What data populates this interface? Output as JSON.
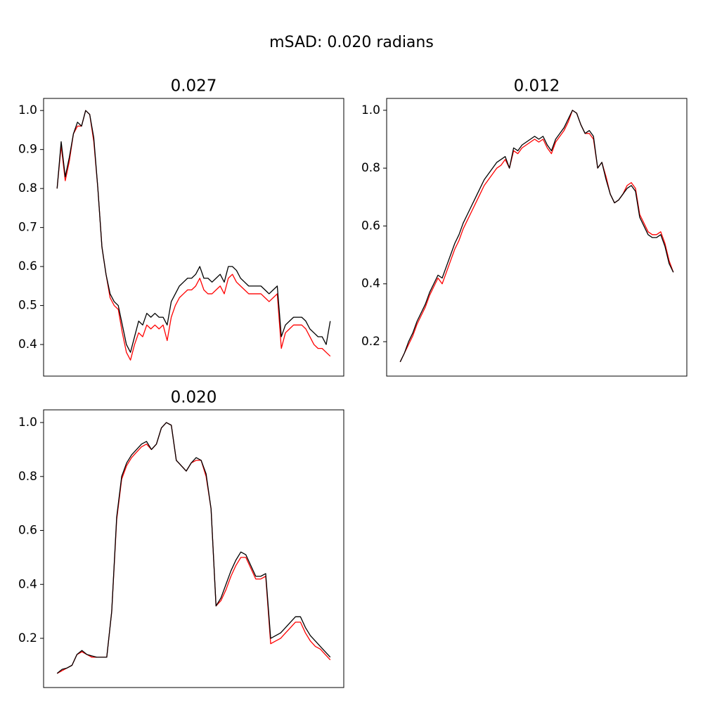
{
  "title": "mSAD: 0.020 radians",
  "chart_data": [
    {
      "type": "line",
      "title": "0.027",
      "ylim": [
        0.319,
        1.031
      ],
      "yticks": [
        {
          "value": 0.4,
          "label": "0.4"
        },
        {
          "value": 0.5,
          "label": "0.5"
        },
        {
          "value": 0.6,
          "label": "0.6"
        },
        {
          "value": 0.7,
          "label": "0.7"
        },
        {
          "value": 0.8,
          "label": "0.8"
        },
        {
          "value": 0.9,
          "label": "0.9"
        },
        {
          "value": 1.0,
          "label": "1.0"
        }
      ],
      "series": [
        {
          "color": "#ff0000",
          "values": [
            0.8,
            0.91,
            0.82,
            0.87,
            0.94,
            0.96,
            0.96,
            1.0,
            0.99,
            0.92,
            0.8,
            0.65,
            0.58,
            0.52,
            0.5,
            0.49,
            0.43,
            0.38,
            0.36,
            0.4,
            0.43,
            0.42,
            0.45,
            0.44,
            0.45,
            0.44,
            0.45,
            0.41,
            0.47,
            0.5,
            0.52,
            0.53,
            0.54,
            0.54,
            0.55,
            0.57,
            0.54,
            0.53,
            0.53,
            0.54,
            0.55,
            0.53,
            0.57,
            0.58,
            0.56,
            0.55,
            0.54,
            0.53,
            0.53,
            0.53,
            0.53,
            0.52,
            0.51,
            0.52,
            0.53,
            0.39,
            0.43,
            0.44,
            0.45,
            0.45,
            0.45,
            0.44,
            0.42,
            0.4,
            0.39,
            0.39,
            0.38,
            0.37
          ]
        },
        {
          "color": "#000000",
          "values": [
            0.8,
            0.92,
            0.83,
            0.88,
            0.94,
            0.97,
            0.96,
            1.0,
            0.99,
            0.93,
            0.8,
            0.65,
            0.58,
            0.53,
            0.51,
            0.5,
            0.45,
            0.4,
            0.38,
            0.42,
            0.46,
            0.45,
            0.48,
            0.47,
            0.48,
            0.47,
            0.47,
            0.45,
            0.51,
            0.53,
            0.55,
            0.56,
            0.57,
            0.57,
            0.58,
            0.6,
            0.57,
            0.57,
            0.56,
            0.57,
            0.58,
            0.56,
            0.6,
            0.6,
            0.59,
            0.57,
            0.56,
            0.55,
            0.55,
            0.55,
            0.55,
            0.54,
            0.53,
            0.54,
            0.55,
            0.42,
            0.45,
            0.46,
            0.47,
            0.47,
            0.47,
            0.46,
            0.44,
            0.43,
            0.42,
            0.42,
            0.4,
            0.46
          ]
        }
      ]
    },
    {
      "type": "line",
      "title": "0.012",
      "ylim": [
        0.081,
        1.041
      ],
      "yticks": [
        0.2,
        0.4,
        0.6,
        0.8,
        {
          "value": 1.0,
          "label": "1.0"
        }
      ],
      "series": [
        {
          "color": "#ff0000",
          "values": [
            0.13,
            0.16,
            0.19,
            0.22,
            0.26,
            0.29,
            0.32,
            0.36,
            0.39,
            0.42,
            0.4,
            0.44,
            0.48,
            0.52,
            0.55,
            0.59,
            0.62,
            0.65,
            0.68,
            0.71,
            0.74,
            0.76,
            0.78,
            0.8,
            0.81,
            0.83,
            0.8,
            0.86,
            0.85,
            0.87,
            0.88,
            0.89,
            0.9,
            0.89,
            0.9,
            0.87,
            0.85,
            0.89,
            0.91,
            0.93,
            0.96,
            1.0,
            0.99,
            0.95,
            0.92,
            0.92,
            0.9,
            0.8,
            0.82,
            0.77,
            0.71,
            0.68,
            0.69,
            0.71,
            0.74,
            0.75,
            0.73,
            0.64,
            0.61,
            0.58,
            0.57,
            0.57,
            0.58,
            0.54,
            0.48,
            0.44
          ]
        },
        {
          "color": "#000000",
          "values": [
            0.13,
            0.16,
            0.2,
            0.23,
            0.27,
            0.3,
            0.33,
            0.37,
            0.4,
            0.43,
            0.42,
            0.46,
            0.5,
            0.54,
            0.57,
            0.61,
            0.64,
            0.67,
            0.7,
            0.73,
            0.76,
            0.78,
            0.8,
            0.82,
            0.83,
            0.84,
            0.8,
            0.87,
            0.86,
            0.88,
            0.89,
            0.9,
            0.91,
            0.9,
            0.91,
            0.88,
            0.86,
            0.9,
            0.92,
            0.94,
            0.97,
            1.0,
            0.99,
            0.95,
            0.92,
            0.93,
            0.91,
            0.8,
            0.82,
            0.76,
            0.71,
            0.68,
            0.69,
            0.71,
            0.73,
            0.74,
            0.72,
            0.63,
            0.6,
            0.57,
            0.56,
            0.56,
            0.57,
            0.53,
            0.47,
            0.44
          ]
        }
      ]
    },
    {
      "type": "line",
      "title": "0.020",
      "ylim": [
        0.0176,
        1.047
      ],
      "yticks": [
        0.2,
        0.4,
        0.6,
        0.8,
        {
          "value": 1.0,
          "label": "1.0"
        }
      ],
      "series": [
        {
          "color": "#ff0000",
          "values": [
            0.07,
            0.08,
            0.09,
            0.1,
            0.14,
            0.15,
            0.14,
            0.13,
            0.13,
            0.13,
            0.13,
            0.3,
            0.64,
            0.79,
            0.84,
            0.87,
            0.89,
            0.91,
            0.92,
            0.9,
            0.92,
            0.98,
            1.0,
            0.99,
            0.86,
            0.84,
            0.82,
            0.85,
            0.86,
            0.86,
            0.8,
            0.68,
            0.32,
            0.34,
            0.38,
            0.43,
            0.47,
            0.5,
            0.5,
            0.46,
            0.42,
            0.42,
            0.43,
            0.18,
            0.19,
            0.2,
            0.22,
            0.24,
            0.26,
            0.26,
            0.22,
            0.19,
            0.17,
            0.16,
            0.14,
            0.12
          ]
        },
        {
          "color": "#000000",
          "values": [
            0.07,
            0.085,
            0.09,
            0.1,
            0.14,
            0.155,
            0.14,
            0.135,
            0.13,
            0.13,
            0.13,
            0.3,
            0.65,
            0.8,
            0.85,
            0.88,
            0.9,
            0.92,
            0.93,
            0.9,
            0.92,
            0.98,
            1.0,
            0.99,
            0.86,
            0.84,
            0.82,
            0.85,
            0.87,
            0.86,
            0.81,
            0.68,
            0.32,
            0.35,
            0.4,
            0.45,
            0.49,
            0.52,
            0.51,
            0.47,
            0.43,
            0.43,
            0.44,
            0.2,
            0.21,
            0.22,
            0.24,
            0.26,
            0.28,
            0.28,
            0.24,
            0.21,
            0.19,
            0.17,
            0.15,
            0.13
          ]
        }
      ]
    }
  ]
}
